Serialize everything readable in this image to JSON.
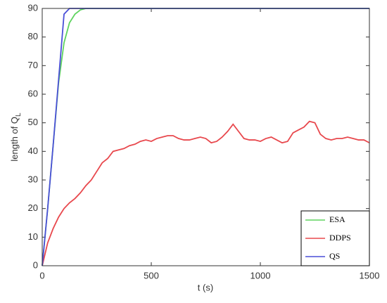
{
  "chart_data": {
    "type": "line",
    "xlabel": "t (s)",
    "ylabel": "length of Q",
    "ylabel_subscript": "L",
    "x": [
      0,
      25,
      50,
      75,
      100,
      125,
      150,
      175,
      200,
      225,
      250,
      275,
      300,
      325,
      350,
      375,
      400,
      425,
      450,
      475,
      500,
      525,
      550,
      575,
      600,
      625,
      650,
      675,
      700,
      725,
      750,
      775,
      800,
      825,
      850,
      875,
      900,
      925,
      950,
      975,
      1000,
      1025,
      1050,
      1075,
      1100,
      1125,
      1150,
      1175,
      1200,
      1225,
      1250,
      1275,
      1300,
      1325,
      1350,
      1375,
      1400,
      1425,
      1450,
      1475,
      1500
    ],
    "series": [
      {
        "name": "ESA",
        "color": "#5fd35f",
        "values": [
          0,
          20,
          42,
          64,
          78,
          85,
          88,
          89.5,
          90,
          90,
          90,
          90,
          90,
          90,
          90,
          90,
          90,
          90,
          90,
          90,
          90,
          90,
          90,
          90,
          90,
          90,
          90,
          90,
          90,
          90,
          90,
          90,
          90,
          90,
          90,
          90,
          90,
          90,
          90,
          90,
          90,
          90,
          90,
          90,
          90,
          90,
          90,
          90,
          90,
          90,
          90,
          90,
          90,
          90,
          90,
          90,
          90,
          90,
          90,
          90,
          90
        ]
      },
      {
        "name": "DDPS",
        "color": "#e8484d",
        "values": [
          0,
          8,
          13,
          17,
          20,
          22,
          23.5,
          25.5,
          28,
          30,
          33,
          36,
          37.5,
          40,
          40.5,
          41,
          42,
          42.5,
          43.5,
          44,
          43.5,
          44.5,
          45,
          45.5,
          45.5,
          44.5,
          44,
          44,
          44.5,
          45,
          44.5,
          43,
          43.5,
          45,
          47,
          49.5,
          47,
          44.5,
          44,
          44,
          43.5,
          44.5,
          45,
          44,
          43,
          43.5,
          46.5,
          47.5,
          48.5,
          50.5,
          50,
          46,
          44.5,
          44,
          44.5,
          44.5,
          45,
          44.5,
          44,
          44,
          43
        ]
      },
      {
        "name": "QS",
        "color": "#4a4fd8",
        "values": [
          0,
          20,
          42,
          65,
          88,
          90,
          90,
          90,
          90,
          90,
          90,
          90,
          90,
          90,
          90,
          90,
          90,
          90,
          90,
          90,
          90,
          90,
          90,
          90,
          90,
          90,
          90,
          90,
          90,
          90,
          90,
          90,
          90,
          90,
          90,
          90,
          90,
          90,
          90,
          90,
          90,
          90,
          90,
          90,
          90,
          90,
          90,
          90,
          90,
          90,
          90,
          90,
          90,
          90,
          90,
          90,
          90,
          90,
          90,
          90,
          90
        ]
      }
    ],
    "xlim": [
      0,
      1500
    ],
    "xticks": [
      0,
      500,
      1000,
      1500
    ],
    "ylim": [
      0,
      90
    ],
    "yticks": [
      0,
      10,
      20,
      30,
      40,
      50,
      60,
      70,
      80,
      90
    ],
    "legend": "lower right"
  }
}
